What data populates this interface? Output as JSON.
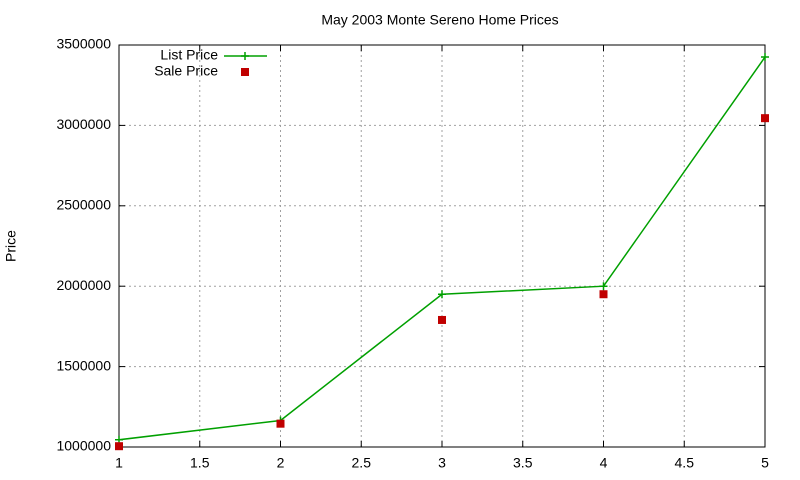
{
  "chart_data": {
    "type": "line",
    "title": "May 2003 Monte Sereno Home Prices",
    "y_label": "Price",
    "x": [
      1,
      2,
      3,
      4,
      5
    ],
    "series": [
      {
        "name": "List Price",
        "color": "#00a000",
        "marker": "plus",
        "line": true,
        "values": [
          1045000,
          1165000,
          1950000,
          2000000,
          3425000
        ]
      },
      {
        "name": "Sale Price",
        "color": "#c00000",
        "marker": "square",
        "line": false,
        "values": [
          1005000,
          1145000,
          1790000,
          1950000,
          3045000
        ]
      }
    ],
    "xlim": [
      1,
      5
    ],
    "xticks": [
      1,
      1.5,
      2,
      2.5,
      3,
      3.5,
      4,
      4.5,
      5
    ],
    "ylim": [
      1000000,
      3500000
    ],
    "yticks": [
      1000000,
      1500000,
      2000000,
      2500000,
      3000000,
      3500000
    ],
    "grid": true,
    "legend": "top-left"
  }
}
